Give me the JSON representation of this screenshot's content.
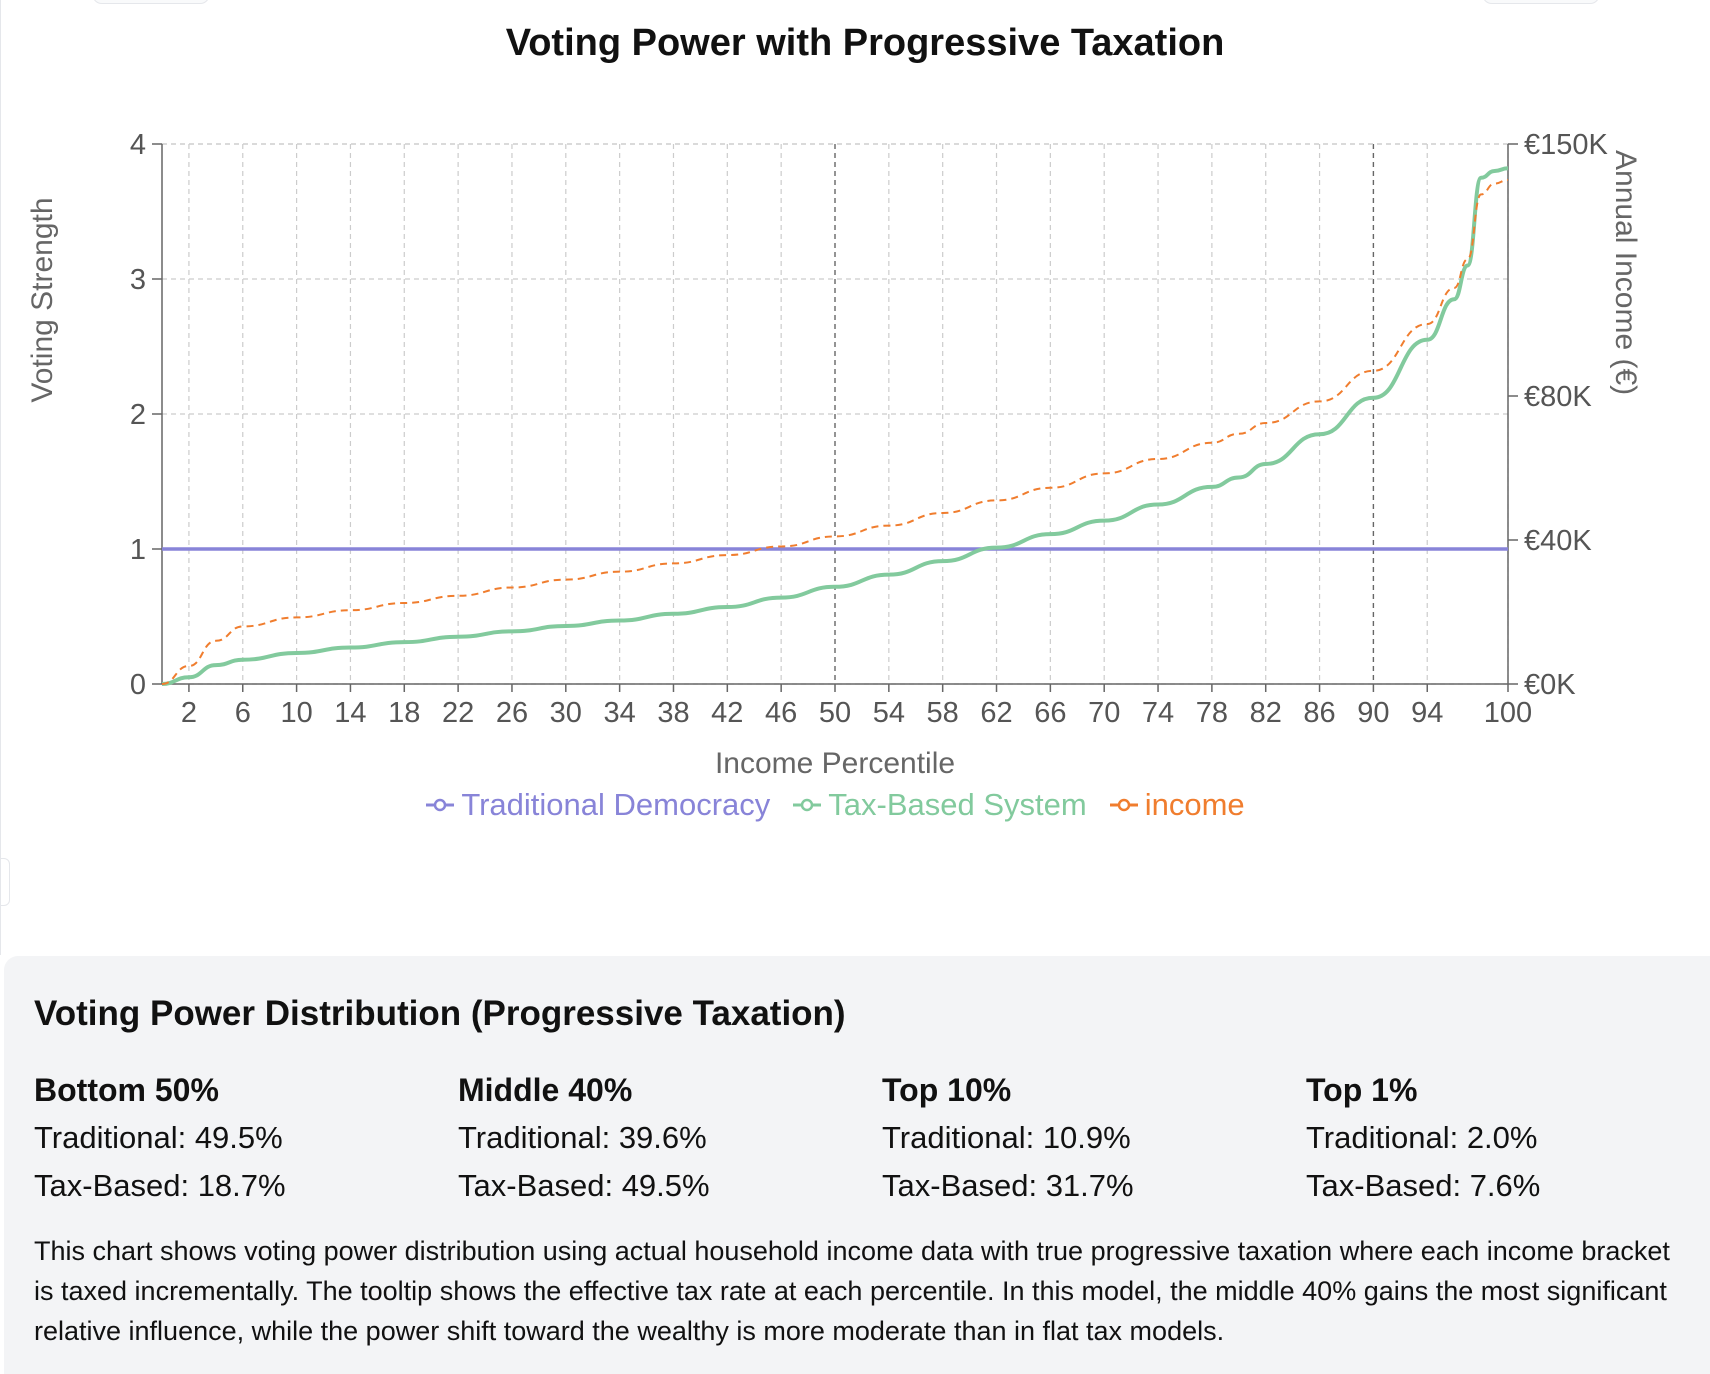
{
  "chart_data": {
    "type": "line",
    "title": "Voting Power with Progressive Taxation",
    "xlabel": "Income Percentile",
    "ylabel": "Voting Strength",
    "y2label": "Annual Income (€)",
    "xlim": [
      0,
      100
    ],
    "ylim": [
      0,
      4
    ],
    "y2ticks": [
      "€0K",
      "€40K",
      "€80K",
      "€150K"
    ],
    "xticks": [
      2,
      6,
      10,
      14,
      18,
      22,
      26,
      30,
      34,
      38,
      42,
      46,
      50,
      54,
      58,
      62,
      66,
      70,
      74,
      78,
      82,
      86,
      90,
      94,
      100
    ],
    "yticks": [
      0,
      1,
      2,
      3,
      4
    ],
    "x": [
      0,
      2,
      4,
      6,
      10,
      14,
      18,
      22,
      26,
      30,
      34,
      38,
      42,
      46,
      50,
      54,
      58,
      62,
      66,
      70,
      74,
      78,
      80,
      82,
      86,
      90,
      94,
      96,
      97,
      98,
      99,
      100
    ],
    "series": [
      {
        "name": "Traditional Democracy",
        "axis": "left",
        "color": "#8884d8",
        "values": [
          1,
          1,
          1,
          1,
          1,
          1,
          1,
          1,
          1,
          1,
          1,
          1,
          1,
          1,
          1,
          1,
          1,
          1,
          1,
          1,
          1,
          1,
          1,
          1,
          1,
          1,
          1,
          1,
          1,
          1,
          1,
          1
        ]
      },
      {
        "name": "Tax-Based System",
        "axis": "left",
        "color": "#82ca9d",
        "values": [
          0,
          0.05,
          0.14,
          0.18,
          0.23,
          0.27,
          0.31,
          0.35,
          0.39,
          0.43,
          0.47,
          0.52,
          0.57,
          0.64,
          0.72,
          0.81,
          0.91,
          1.01,
          1.11,
          1.21,
          1.33,
          1.46,
          1.53,
          1.63,
          1.85,
          2.12,
          2.55,
          2.85,
          3.1,
          3.75,
          3.8,
          3.82
        ]
      },
      {
        "name": "income",
        "axis": "right",
        "color": "#f07d2e",
        "dashed": true,
        "values": [
          0,
          5,
          12,
          16,
          18.5,
          20.5,
          22.5,
          24.5,
          26.8,
          29,
          31.2,
          33.5,
          35.8,
          38.2,
          41,
          44,
          47.5,
          51,
          54.5,
          58.5,
          62.5,
          67,
          69.5,
          72.5,
          78.5,
          87,
          100,
          110,
          118,
          136,
          139,
          140
        ]
      }
    ],
    "grid": true,
    "legend": "bottom",
    "reference_lines_x": [
      50,
      90
    ]
  },
  "summary": {
    "title": "Voting Power Distribution (Progressive Taxation)",
    "groups": [
      {
        "label": "Bottom 50%",
        "traditional": "Traditional: 49.5%",
        "tax_based": "Tax-Based: 18.7%"
      },
      {
        "label": "Middle 40%",
        "traditional": "Traditional: 39.6%",
        "tax_based": "Tax-Based: 49.5%"
      },
      {
        "label": "Top 10%",
        "traditional": "Traditional: 10.9%",
        "tax_based": "Tax-Based: 31.7%"
      },
      {
        "label": "Top 1%",
        "traditional": "Traditional: 2.0%",
        "tax_based": "Tax-Based: 7.6%"
      }
    ],
    "description": "This chart shows voting power distribution using actual household income data with true progressive taxation where each income bracket is taxed incrementally. The tooltip shows the effective tax rate at each percentile. In this model, the middle 40% gains the most significant relative influence, while the power shift toward the wealthy is more moderate than in flat tax models."
  }
}
